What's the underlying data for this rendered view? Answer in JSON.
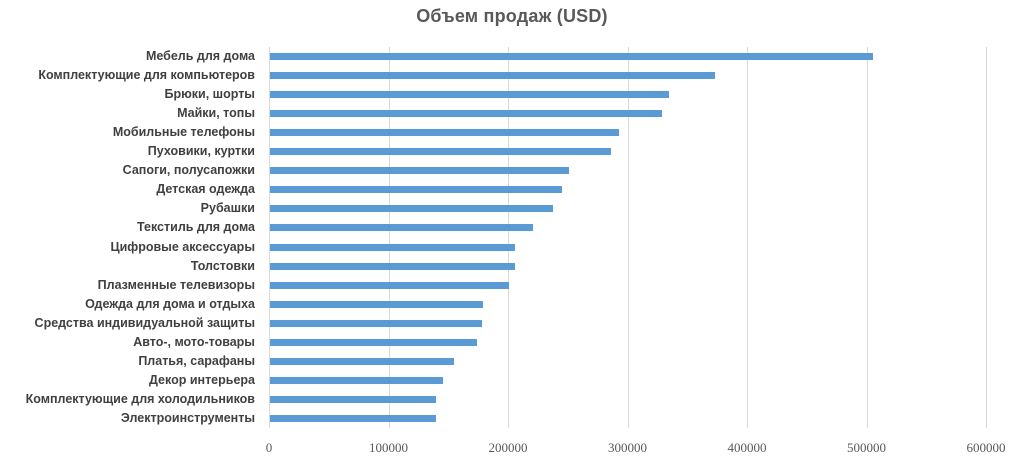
{
  "chart_data": {
    "type": "bar",
    "orientation": "horizontal",
    "title": "Объем продаж  (USD)",
    "xlabel": "",
    "ylabel": "",
    "xlim": [
      0,
      600000
    ],
    "grid": true,
    "legend": "none",
    "bar_color": "#5B9BD5",
    "x_ticks": [
      "0",
      "100000",
      "200000",
      "300000",
      "400000",
      "500000",
      "600000"
    ],
    "categories": [
      "Мебель для дома",
      "Комплектующие для компьютеров",
      "Брюки, шорты",
      "Майки, топы",
      "Мобильные телефоны",
      "Пуховики, куртки",
      "Сапоги, полусапожки",
      "Детская одежда",
      "Рубашки",
      "Текстиль для дома",
      "Цифровые аксессуары",
      "Толстовки",
      "Плазменные телевизоры",
      "Одежда для дома и отдыха",
      "Средства индивидуальной защиты",
      "Авто-, мото-товары",
      "Платья, сарафаны",
      "Декор интерьера",
      "Комплектующие для холодильников",
      "Электроинструменты"
    ],
    "values": [
      505000,
      372000,
      334000,
      328000,
      292000,
      285000,
      250000,
      244000,
      237000,
      220000,
      205000,
      205000,
      200000,
      178000,
      177000,
      173000,
      154000,
      145000,
      139000,
      139000
    ]
  }
}
